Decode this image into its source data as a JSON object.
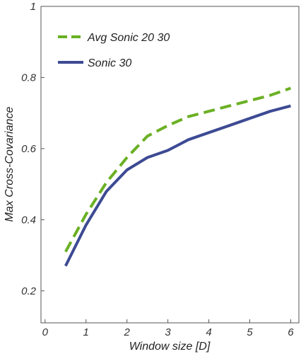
{
  "chart_data": {
    "type": "line",
    "xlabel": "Window size [D]",
    "ylabel": "Max Cross-Covariance",
    "xlim": [
      -0.1,
      6.2
    ],
    "ylim": [
      0.11,
      1.0
    ],
    "xticks": [
      0,
      1,
      2,
      3,
      4,
      5,
      6
    ],
    "yticks": [
      0.2,
      0.4,
      0.6,
      0.8,
      1
    ],
    "xtick_labels": [
      "0",
      "1",
      "2",
      "3",
      "4",
      "5",
      "6"
    ],
    "ytick_labels": [
      "0.2",
      "0.4",
      "0.6",
      "0.8",
      "1"
    ],
    "grid": false,
    "legend_position": "top-left",
    "x": [
      0.5,
      1.0,
      1.5,
      2.0,
      2.5,
      3.0,
      3.5,
      4.0,
      4.5,
      5.0,
      5.5,
      6.0
    ],
    "series": [
      {
        "name": "Avg Sonic 20 30",
        "color": "#6ab023",
        "dash": true,
        "values": [
          0.31,
          0.415,
          0.505,
          0.575,
          0.635,
          0.665,
          0.69,
          0.705,
          0.72,
          0.735,
          0.75,
          0.77
        ]
      },
      {
        "name": "Sonic 30",
        "color": "#3d4a93",
        "dash": false,
        "values": [
          0.27,
          0.385,
          0.48,
          0.54,
          0.575,
          0.595,
          0.625,
          0.645,
          0.665,
          0.685,
          0.705,
          0.72
        ]
      }
    ]
  }
}
